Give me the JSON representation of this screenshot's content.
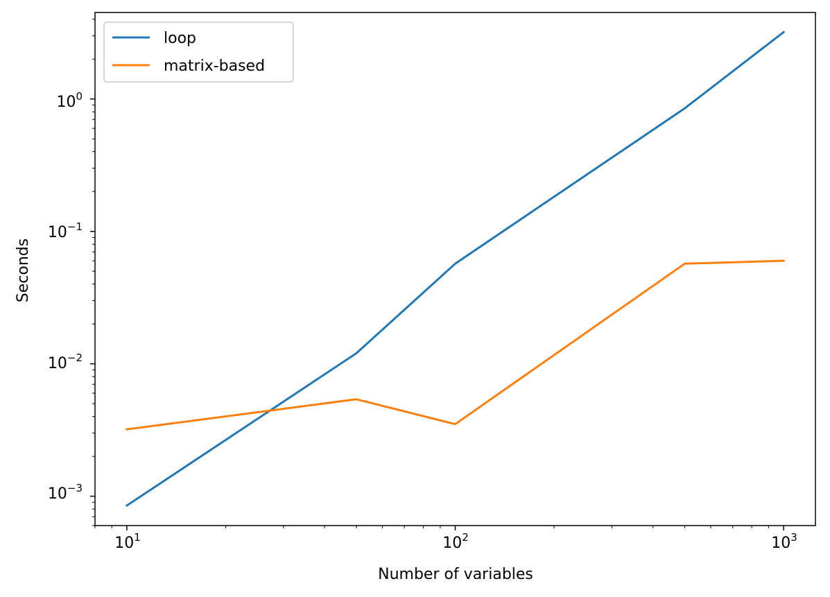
{
  "chart_data": {
    "type": "line",
    "title": "",
    "xlabel": "Number of variables",
    "ylabel": "Seconds",
    "xscale": "log",
    "yscale": "log",
    "xlim": [
      8.0,
      1250
    ],
    "ylim": [
      0.0006,
      4.5
    ],
    "grid": false,
    "legend_position": "upper-left",
    "x_ticks": [
      {
        "base": "10",
        "exp": "1",
        "value": 10
      },
      {
        "base": "10",
        "exp": "2",
        "value": 100
      },
      {
        "base": "10",
        "exp": "3",
        "value": 1000
      }
    ],
    "y_ticks": [
      {
        "base": "10",
        "exp": "−3",
        "value": 0.001
      },
      {
        "base": "10",
        "exp": "−2",
        "value": 0.01
      },
      {
        "base": "10",
        "exp": "−1",
        "value": 0.1
      },
      {
        "base": "10",
        "exp": "0",
        "value": 1
      }
    ],
    "x": [
      10,
      50,
      100,
      500,
      1000
    ],
    "series": [
      {
        "name": "loop",
        "color": "#1f77b4",
        "values": [
          0.00085,
          0.012,
          0.057,
          0.85,
          3.2
        ]
      },
      {
        "name": "matrix-based",
        "color": "#ff7f0e",
        "values": [
          0.0032,
          0.0054,
          0.0035,
          0.057,
          0.06
        ]
      }
    ]
  }
}
